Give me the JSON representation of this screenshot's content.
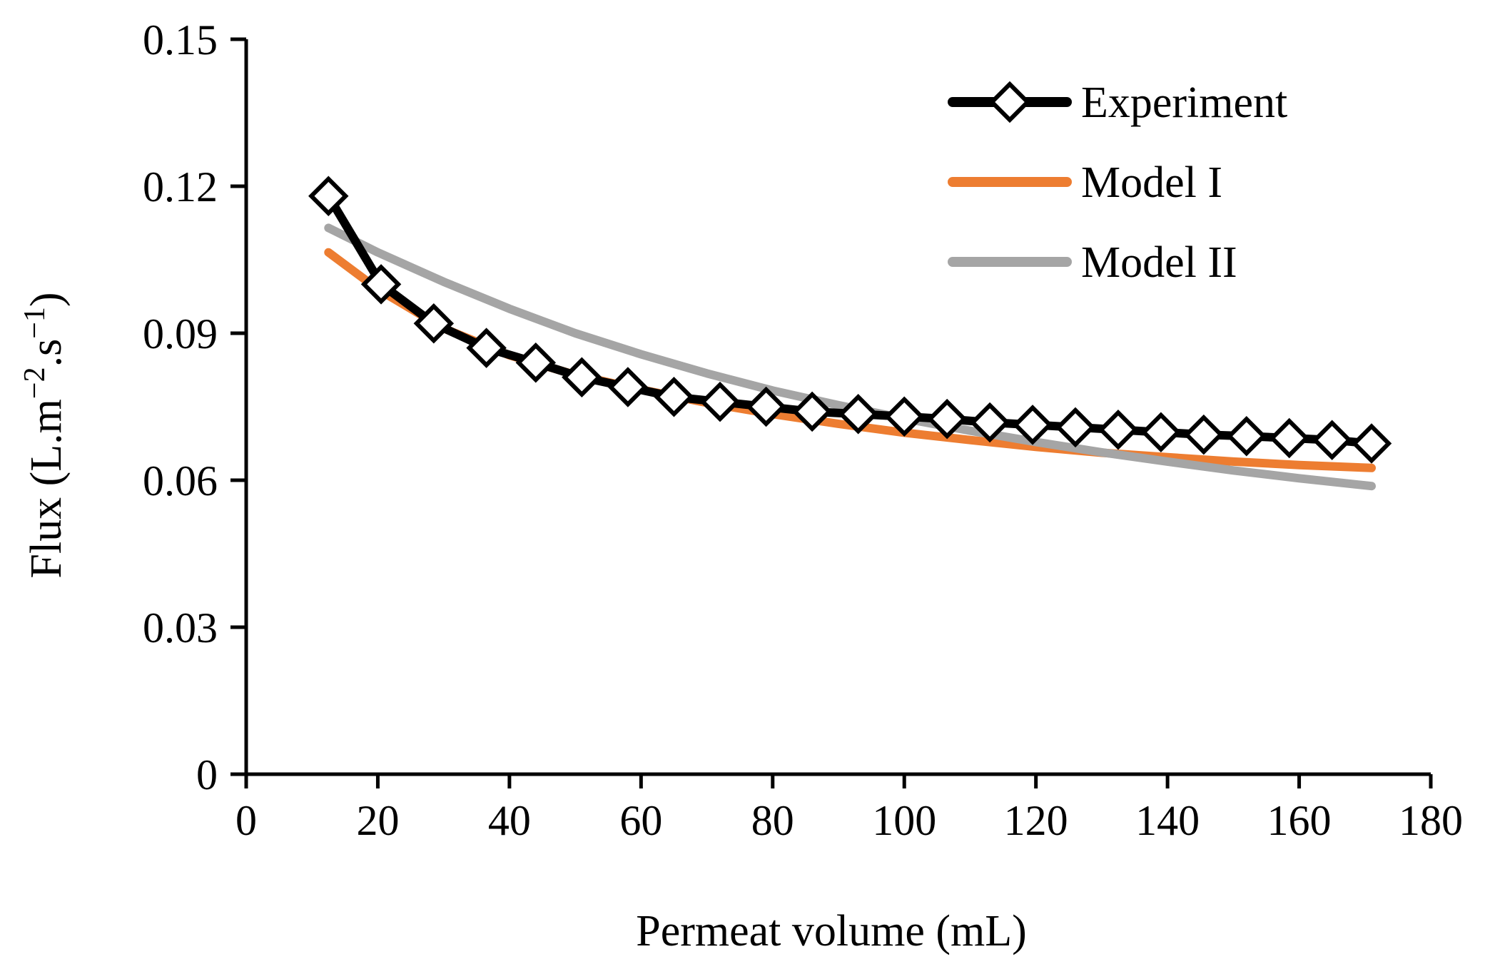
{
  "chart_data": {
    "type": "line",
    "xlabel": "Permeat volume (mL)",
    "ylabel": "Flux (L.m⁻².s⁻¹)",
    "ylabel_parts": [
      "Flux (L.m",
      "−2",
      ".s",
      "−1",
      ")"
    ],
    "xlim": [
      0,
      180
    ],
    "ylim": [
      0,
      0.15
    ],
    "x_ticks": [
      0,
      20,
      40,
      60,
      80,
      100,
      120,
      140,
      160,
      180
    ],
    "y_ticks": [
      0,
      0.03,
      0.06,
      0.09,
      0.12,
      0.15
    ],
    "x_tick_labels": [
      "0",
      "20",
      "40",
      "60",
      "80",
      "100",
      "120",
      "140",
      "160",
      "180"
    ],
    "y_tick_labels": [
      "0",
      "0.03",
      "0.06",
      "0.09",
      "0.12",
      "0.15"
    ],
    "grid": false,
    "legend_position": "top-right",
    "series": [
      {
        "name": "Experiment",
        "color": "#000000",
        "marker": "diamond",
        "x": [
          12.5,
          20.5,
          28.5,
          36.5,
          44,
          51,
          58,
          65,
          72,
          79,
          86,
          93,
          100,
          106.5,
          113,
          119.5,
          126,
          132.5,
          139,
          145.5,
          152,
          158.5,
          165,
          171
        ],
        "y": [
          0.118,
          0.1,
          0.092,
          0.087,
          0.084,
          0.081,
          0.079,
          0.077,
          0.076,
          0.075,
          0.074,
          0.0735,
          0.073,
          0.0725,
          0.0718,
          0.0713,
          0.0708,
          0.0703,
          0.0698,
          0.0693,
          0.069,
          0.0686,
          0.0682,
          0.0675
        ]
      },
      {
        "name": "Model I",
        "color": "#ED7D31",
        "x": [
          12.5,
          20,
          30,
          40,
          50,
          60,
          70,
          80,
          90,
          100,
          110,
          120,
          130,
          140,
          150,
          160,
          171
        ],
        "y": [
          0.1065,
          0.099,
          0.091,
          0.0855,
          0.0815,
          0.0785,
          0.0758,
          0.0735,
          0.0715,
          0.0697,
          0.0682,
          0.0668,
          0.0656,
          0.0647,
          0.0638,
          0.0631,
          0.0625
        ]
      },
      {
        "name": "Model II",
        "color": "#A5A5A5",
        "x": [
          12.5,
          20,
          30,
          40,
          50,
          60,
          70,
          80,
          90,
          100,
          110,
          120,
          130,
          140,
          150,
          160,
          171
        ],
        "y": [
          0.1115,
          0.1065,
          0.1005,
          0.095,
          0.09,
          0.0857,
          0.0818,
          0.0783,
          0.0753,
          0.0726,
          0.0701,
          0.0678,
          0.0657,
          0.0638,
          0.062,
          0.0604,
          0.0588
        ]
      }
    ]
  }
}
